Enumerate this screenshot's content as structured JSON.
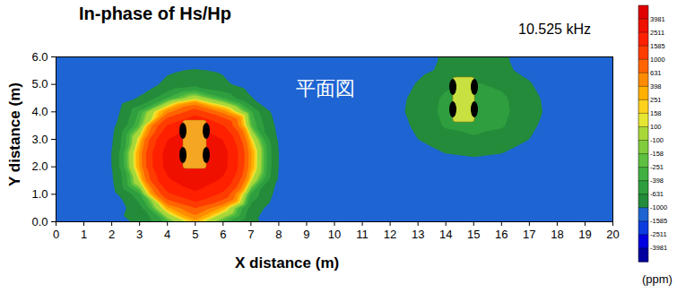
{
  "chart_data": {
    "type": "contour",
    "title": "In-phase of Hs/Hp",
    "subtitle": "10.525 kHz",
    "x_label": "X distance (m)",
    "y_label": "Y distance (m)",
    "annotations": [
      "平面図"
    ],
    "xlim": [
      0,
      20
    ],
    "ylim": [
      0,
      6
    ],
    "xticks": [
      0,
      1,
      2,
      3,
      4,
      5,
      6,
      7,
      8,
      9,
      10,
      11,
      12,
      13,
      14,
      15,
      16,
      17,
      18,
      19,
      20
    ],
    "yticks": [
      0,
      1,
      2,
      3,
      4,
      5,
      6
    ],
    "grid": false,
    "cells": {
      "x": [
        0,
        1,
        2,
        3,
        4,
        5,
        6,
        7,
        8,
        9,
        10,
        11,
        12,
        13,
        14,
        15,
        16,
        17,
        18,
        19,
        20
      ],
      "y": [
        0,
        0.5,
        1,
        1.5,
        2,
        2.5,
        3,
        3.5,
        4,
        4.5,
        5,
        5.5,
        6
      ],
      "values": [
        [
          -1500,
          -1500,
          -1200,
          -900,
          -300,
          300,
          -300,
          -900,
          -1200,
          -1500,
          -1500,
          -1500,
          -1500,
          -1500,
          -1500,
          -1500,
          -1500,
          -1500,
          -1500,
          -1500,
          -1500
        ],
        [
          -1500,
          -1500,
          -1300,
          -730,
          330,
          1000,
          330,
          -730,
          -1300,
          -1500,
          -1500,
          -1500,
          -1500,
          -1500,
          -1500,
          -1500,
          -1500,
          -1500,
          -1500,
          -1500,
          -1500
        ],
        [
          -1500,
          -1500,
          -1160,
          -420,
          1430,
          2280,
          1430,
          -420,
          -1160,
          -1500,
          -1500,
          -1500,
          -1500,
          -1500,
          -1500,
          -1500,
          -1500,
          -1500,
          -1500,
          -1500,
          -1500
        ],
        [
          -1500,
          -1500,
          -1060,
          140,
          2330,
          3320,
          2330,
          140,
          -1060,
          -1500,
          -1500,
          -1500,
          -1500,
          -1485,
          -1440,
          -1420,
          -1440,
          -1485,
          -1500,
          -1500,
          -1500
        ],
        [
          -1500,
          -1500,
          -1010,
          410,
          2890,
          3880,
          2890,
          410,
          -1010,
          -1500,
          -1500,
          -1500,
          -1490,
          -1410,
          -1240,
          -1170,
          -1240,
          -1410,
          -1490,
          -1500,
          -1500
        ],
        [
          -1500,
          -1500,
          -1000,
          430,
          2950,
          3920,
          2950,
          430,
          -1000,
          -1500,
          -1500,
          -1500,
          -1430,
          -1190,
          -990,
          -930,
          -990,
          -1190,
          -1430,
          -1500,
          -1500
        ],
        [
          -1500,
          -1500,
          -1050,
          210,
          2470,
          3480,
          2470,
          210,
          -1050,
          -1500,
          -1500,
          -1500,
          -1345,
          -1000,
          -790,
          -680,
          -790,
          -1000,
          -1345,
          -1500,
          -1500
        ],
        [
          -1500,
          -1500,
          -1135,
          -210,
          1630,
          2520,
          1630,
          -210,
          -1135,
          -1500,
          -1500,
          -1470,
          -1230,
          -905,
          -590,
          -510,
          -590,
          -905,
          -1230,
          -1470,
          -1500
        ],
        [
          -1500,
          -1500,
          -1260,
          -350,
          530,
          1270,
          530,
          -350,
          -1260,
          -1500,
          -1500,
          -1460,
          -1180,
          -840,
          -540,
          -380,
          -540,
          -840,
          -1180,
          -1460,
          -1500
        ],
        [
          -1500,
          -1500,
          -1390,
          -960,
          -380,
          50,
          -380,
          -960,
          -1390,
          -1500,
          -1500,
          -1465,
          -1200,
          -870,
          -560,
          -460,
          -560,
          -870,
          -1200,
          -1465,
          -1500
        ],
        [
          -1500,
          -1500,
          -1500,
          -1220,
          -900,
          -740,
          -900,
          -1220,
          -1500,
          -1500,
          -1500,
          -1485,
          -1290,
          -960,
          -700,
          -590,
          -700,
          -960,
          -1290,
          -1485,
          -1500
        ],
        [
          -1500,
          -1500,
          -1500,
          -1400,
          -1050,
          -950,
          -1050,
          -1400,
          -1500,
          -1500,
          -1500,
          -1500,
          -1410,
          -1100,
          -920,
          -840,
          -920,
          -1100,
          -1410,
          -1500,
          -1500
        ],
        [
          -1500,
          -1500,
          -1500,
          -1500,
          -1430,
          -1380,
          -1430,
          -1500,
          -1500,
          -1500,
          -1500,
          -1500,
          -1465,
          -1100,
          -960,
          -900,
          -960,
          -1100,
          -1465,
          -1500,
          -1500
        ]
      ]
    },
    "color_bar": {
      "ticks": [
        -3981,
        -2511,
        -1585,
        -1000,
        -631,
        -398,
        -251,
        -158,
        -100,
        100,
        158,
        251,
        398,
        631,
        1000,
        1585,
        2511,
        3981
      ],
      "colors": [
        "#0000a0",
        "#0000e0",
        "#0a3ce0",
        "#1e64d2",
        "#238b3a",
        "#2e9e3e",
        "#40b040",
        "#5ec040",
        "#80cc3c",
        "#a8d838",
        "#e6e632",
        "#ffd21e",
        "#ffb000",
        "#ff8c00",
        "#ff6400",
        "#ff3c00",
        "#ff2000",
        "#f01000",
        "#e00000"
      ],
      "label": "(ppm)"
    }
  }
}
